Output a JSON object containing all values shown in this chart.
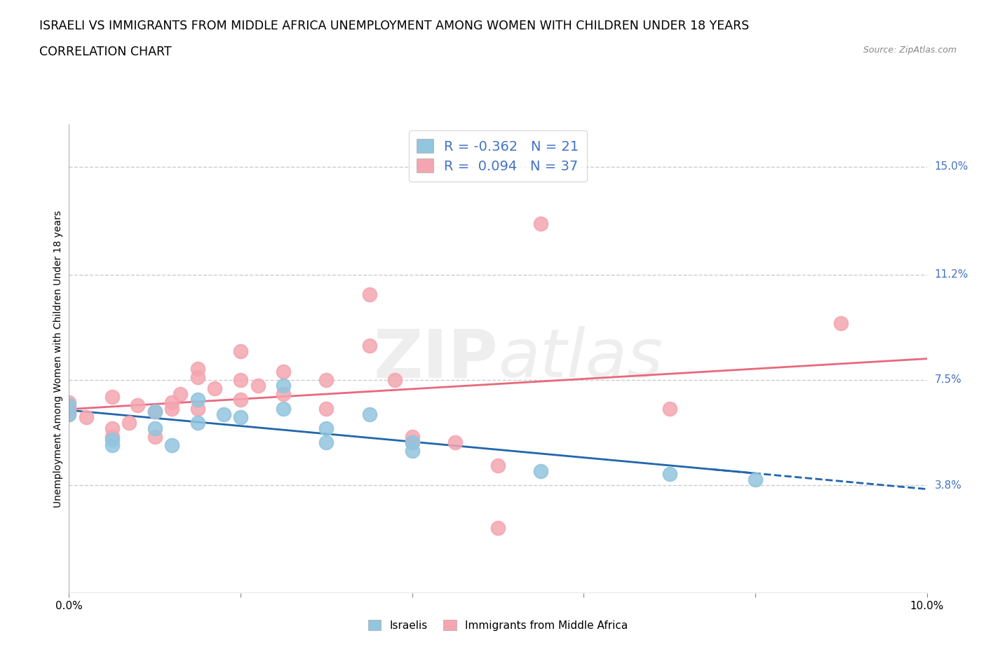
{
  "title_line1": "ISRAELI VS IMMIGRANTS FROM MIDDLE AFRICA UNEMPLOYMENT AMONG WOMEN WITH CHILDREN UNDER 18 YEARS",
  "title_line2": "CORRELATION CHART",
  "source_text": "Source: ZipAtlas.com",
  "ylabel": "Unemployment Among Women with Children Under 18 years",
  "xlim": [
    0.0,
    0.1
  ],
  "ylim": [
    0.0,
    0.165
  ],
  "xticks": [
    0.0,
    0.02,
    0.04,
    0.06,
    0.08,
    0.1
  ],
  "ytick_positions": [
    0.038,
    0.075,
    0.112,
    0.15
  ],
  "ytick_labels": [
    "3.8%",
    "7.5%",
    "11.2%",
    "15.0%"
  ],
  "watermark": "ZIPatlas",
  "israeli_color": "#92c5de",
  "immigrant_color": "#f4a6b0",
  "israeli_line_color": "#2166ac",
  "immigrant_line_color": "#e8697d",
  "R_israeli": -0.362,
  "N_israeli": 21,
  "R_immigrant": 0.094,
  "N_immigrant": 37,
  "israeli_points": [
    [
      0.0,
      0.066
    ],
    [
      0.0,
      0.063
    ],
    [
      0.005,
      0.052
    ],
    [
      0.005,
      0.054
    ],
    [
      0.01,
      0.064
    ],
    [
      0.01,
      0.058
    ],
    [
      0.012,
      0.052
    ],
    [
      0.015,
      0.06
    ],
    [
      0.015,
      0.068
    ],
    [
      0.018,
      0.063
    ],
    [
      0.02,
      0.062
    ],
    [
      0.025,
      0.065
    ],
    [
      0.025,
      0.073
    ],
    [
      0.03,
      0.058
    ],
    [
      0.03,
      0.053
    ],
    [
      0.035,
      0.063
    ],
    [
      0.04,
      0.053
    ],
    [
      0.04,
      0.05
    ],
    [
      0.055,
      0.043
    ],
    [
      0.07,
      0.042
    ],
    [
      0.08,
      0.04
    ]
  ],
  "immigrant_points": [
    [
      0.0,
      0.065
    ],
    [
      0.0,
      0.067
    ],
    [
      0.0,
      0.063
    ],
    [
      0.002,
      0.062
    ],
    [
      0.005,
      0.058
    ],
    [
      0.005,
      0.055
    ],
    [
      0.005,
      0.069
    ],
    [
      0.007,
      0.06
    ],
    [
      0.008,
      0.066
    ],
    [
      0.01,
      0.064
    ],
    [
      0.01,
      0.055
    ],
    [
      0.012,
      0.065
    ],
    [
      0.012,
      0.067
    ],
    [
      0.013,
      0.07
    ],
    [
      0.015,
      0.065
    ],
    [
      0.015,
      0.079
    ],
    [
      0.015,
      0.076
    ],
    [
      0.017,
      0.072
    ],
    [
      0.02,
      0.085
    ],
    [
      0.02,
      0.075
    ],
    [
      0.02,
      0.068
    ],
    [
      0.022,
      0.073
    ],
    [
      0.025,
      0.07
    ],
    [
      0.025,
      0.078
    ],
    [
      0.03,
      0.075
    ],
    [
      0.03,
      0.065
    ],
    [
      0.035,
      0.105
    ],
    [
      0.035,
      0.087
    ],
    [
      0.038,
      0.075
    ],
    [
      0.04,
      0.055
    ],
    [
      0.04,
      0.053
    ],
    [
      0.045,
      0.053
    ],
    [
      0.05,
      0.045
    ],
    [
      0.05,
      0.023
    ],
    [
      0.055,
      0.13
    ],
    [
      0.07,
      0.065
    ],
    [
      0.09,
      0.095
    ]
  ],
  "grid_color": "#cccccc",
  "background_color": "#ffffff",
  "title_fontsize": 12.5,
  "label_fontsize": 10,
  "tick_fontsize": 11,
  "legend_fontsize": 14
}
